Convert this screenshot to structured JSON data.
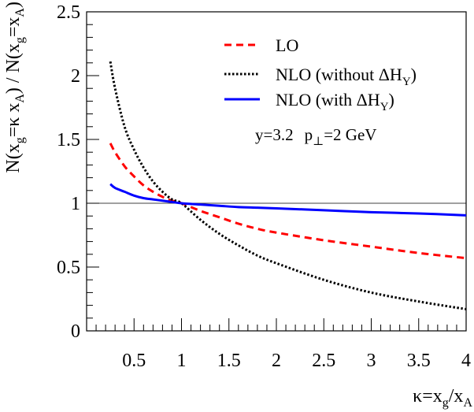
{
  "chart_data": {
    "type": "line",
    "xlabel": {
      "main": "κ=x",
      "sub1": "g",
      "mid": "/x",
      "sub2": "A"
    },
    "ylabel": {
      "p1": "N(x",
      "s1": "g",
      "p2": "=κ x",
      "s2": "A",
      "p3": ") / N(x",
      "s3": "g",
      "p4": "=x",
      "s4": "A",
      "p5": ")"
    },
    "xlim": [
      0,
      4
    ],
    "ylim": [
      0,
      2.5
    ],
    "x_ticks": [
      0.5,
      1,
      1.5,
      2,
      2.5,
      3,
      3.5,
      4
    ],
    "x_tick_labels": [
      "0.5",
      "1",
      "1.5",
      "2",
      "2.5",
      "3",
      "3.5",
      "4"
    ],
    "y_ticks": [
      0,
      0.5,
      1,
      1.5,
      2,
      2.5
    ],
    "y_tick_labels": [
      "0",
      "0.5",
      "1",
      "1.5",
      "2",
      "2.5"
    ],
    "reference_line_y": 1,
    "grid": false,
    "legend_placement": "top-right",
    "annotation": {
      "a1": "y=3.2",
      "a2": "p",
      "a2sub": "⊥",
      "a3": "=2 GeV"
    },
    "series": [
      {
        "key": "lo",
        "legend": {
          "t1": "LO"
        },
        "color": "#ff0000",
        "style": "dashed",
        "x": [
          0.25,
          0.3,
          0.4,
          0.5,
          0.6,
          0.7,
          0.8,
          0.9,
          1.0,
          1.2,
          1.4,
          1.6,
          1.8,
          2.0,
          2.5,
          3.0,
          3.5,
          4.0
        ],
        "y": [
          1.47,
          1.4,
          1.29,
          1.21,
          1.14,
          1.09,
          1.05,
          1.02,
          1.0,
          0.94,
          0.89,
          0.84,
          0.8,
          0.77,
          0.71,
          0.66,
          0.61,
          0.57
        ]
      },
      {
        "key": "nlo_without",
        "legend": {
          "t1": "NLO (without ΔH",
          "sub": "Y",
          "t2": ")"
        },
        "color": "#000000",
        "style": "dotted",
        "x": [
          0.25,
          0.3,
          0.4,
          0.5,
          0.6,
          0.7,
          0.8,
          0.9,
          1.0,
          1.2,
          1.4,
          1.6,
          1.8,
          2.0,
          2.5,
          3.0,
          3.5,
          4.0
        ],
        "y": [
          2.11,
          1.9,
          1.6,
          1.42,
          1.28,
          1.17,
          1.09,
          1.03,
          1.0,
          0.87,
          0.76,
          0.67,
          0.59,
          0.53,
          0.4,
          0.3,
          0.23,
          0.17
        ]
      },
      {
        "key": "nlo_with",
        "legend": {
          "t1": "NLO (with ΔH",
          "sub": "Y",
          "t2": ")"
        },
        "color": "#0000ff",
        "style": "solid",
        "x": [
          0.25,
          0.3,
          0.4,
          0.5,
          0.6,
          0.7,
          0.8,
          0.9,
          1.0,
          1.2,
          1.4,
          1.6,
          1.8,
          2.0,
          2.5,
          3.0,
          3.5,
          4.0
        ],
        "y": [
          1.15,
          1.12,
          1.09,
          1.06,
          1.04,
          1.03,
          1.02,
          1.01,
          1.0,
          0.99,
          0.98,
          0.97,
          0.965,
          0.96,
          0.945,
          0.93,
          0.92,
          0.905
        ]
      }
    ]
  }
}
